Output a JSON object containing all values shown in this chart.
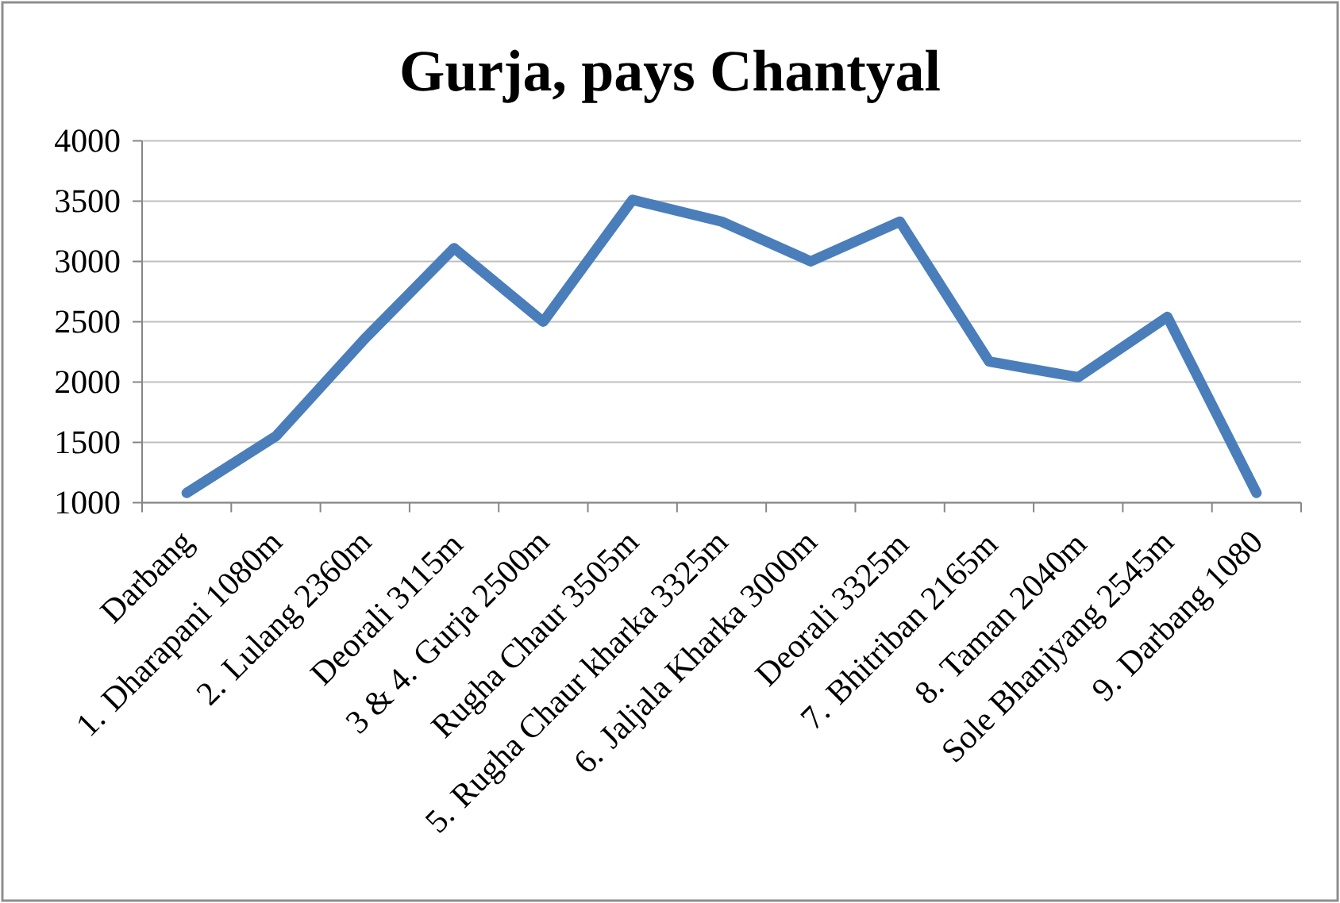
{
  "chart_data": {
    "type": "line",
    "title": "Gurja, pays Chantyal",
    "categories": [
      "Darbang",
      "1. Dharapani 1080m",
      "2. Lulang 2360m",
      "Deorali 3115m",
      "3 & 4. Gurja 2500m",
      "Rugha Chaur 3505m",
      "5. Rugha Chaur kharka 3325m",
      "6. Jaljala Kharka 3000m",
      "Deorali 3325m",
      "7. Bhitriban 2165m",
      "8. Taman 2040m",
      "Sole Bhanjyang 2545m",
      "9. Darbang 1080"
    ],
    "values": [
      1080,
      1550,
      2360,
      3110,
      2500,
      3510,
      3330,
      3000,
      3330,
      2170,
      2040,
      2540,
      1080
    ],
    "color": "#4a7ebb",
    "line_style": "solid",
    "ylim": [
      1000,
      4000
    ],
    "yticks": [
      1000,
      1500,
      2000,
      2500,
      3000,
      3500,
      4000
    ],
    "grid": "y"
  }
}
